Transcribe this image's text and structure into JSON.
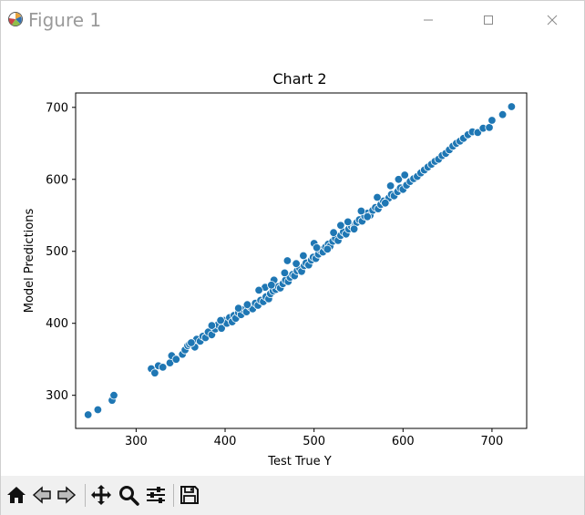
{
  "window": {
    "title": "Figure 1",
    "controls": [
      "minimize",
      "maximize",
      "close"
    ]
  },
  "toolbar": {
    "buttons": [
      {
        "name": "home-icon",
        "tooltip": "Reset original view"
      },
      {
        "name": "back-icon",
        "tooltip": "Back"
      },
      {
        "name": "forward-icon",
        "tooltip": "Forward"
      },
      {
        "name": "pan-icon",
        "tooltip": "Pan"
      },
      {
        "name": "zoom-icon",
        "tooltip": "Zoom"
      },
      {
        "name": "configure-subplots-icon",
        "tooltip": "Configure subplots"
      },
      {
        "name": "save-icon",
        "tooltip": "Save"
      }
    ]
  },
  "chart_data": {
    "type": "scatter",
    "title": "Chart 2",
    "xlabel": "Test True Y",
    "ylabel": "Model Predictions",
    "xlim": [
      232,
      739
    ],
    "ylim": [
      254,
      720
    ],
    "xticks": [
      300,
      400,
      500,
      600,
      700
    ],
    "yticks": [
      300,
      400,
      500,
      600,
      700
    ],
    "grid": false,
    "marker_color": "#1f77b4",
    "x": [
      246,
      257,
      273,
      275,
      317,
      321,
      325,
      330,
      338,
      340,
      345,
      352,
      355,
      358,
      360,
      366,
      368,
      372,
      375,
      378,
      381,
      385,
      389,
      392,
      396,
      399,
      402,
      405,
      408,
      410,
      412,
      415,
      418,
      421,
      424,
      428,
      431,
      434,
      437,
      440,
      443,
      446,
      449,
      451,
      454,
      457,
      460,
      462,
      465,
      468,
      471,
      473,
      476,
      478,
      481,
      484,
      486,
      489,
      491,
      494,
      497,
      499,
      502,
      505,
      507,
      510,
      513,
      516,
      518,
      521,
      524,
      527,
      530,
      533,
      536,
      539,
      542,
      545,
      548,
      551,
      554,
      557,
      560,
      563,
      566,
      569,
      572,
      575,
      578,
      581,
      584,
      587,
      590,
      594,
      597,
      600,
      604,
      608,
      612,
      616,
      620,
      624,
      628,
      632,
      636,
      640,
      644,
      648,
      652,
      656,
      660,
      664,
      668,
      673,
      678,
      684,
      690,
      697,
      700,
      712,
      722,
      470,
      480,
      500,
      515,
      530,
      545,
      560,
      580,
      595,
      425,
      445,
      455,
      385,
      362,
      395,
      415,
      438,
      452,
      467,
      488,
      503,
      522,
      538,
      553,
      571,
      586,
      602
    ],
    "y": [
      273,
      280,
      293,
      300,
      337,
      331,
      341,
      339,
      345,
      355,
      350,
      357,
      363,
      369,
      371,
      367,
      378,
      375,
      382,
      380,
      388,
      384,
      392,
      398,
      393,
      404,
      400,
      408,
      402,
      411,
      407,
      415,
      412,
      419,
      416,
      423,
      420,
      428,
      425,
      432,
      430,
      437,
      434,
      441,
      445,
      447,
      451,
      449,
      455,
      460,
      458,
      464,
      468,
      466,
      473,
      476,
      472,
      480,
      484,
      481,
      488,
      492,
      490,
      496,
      502,
      499,
      506,
      510,
      507,
      514,
      518,
      515,
      522,
      527,
      524,
      531,
      535,
      533,
      540,
      544,
      542,
      549,
      553,
      550,
      557,
      561,
      559,
      565,
      570,
      568,
      574,
      579,
      577,
      583,
      588,
      586,
      592,
      597,
      601,
      604,
      609,
      613,
      617,
      621,
      625,
      628,
      633,
      636,
      641,
      646,
      650,
      653,
      657,
      662,
      666,
      665,
      671,
      672,
      682,
      690,
      701,
      487,
      483,
      511,
      503,
      536,
      531,
      548,
      567,
      600,
      426,
      450,
      460,
      397,
      373,
      404,
      421,
      446,
      453,
      470,
      494,
      505,
      526,
      541,
      556,
      575,
      591,
      606
    ]
  }
}
